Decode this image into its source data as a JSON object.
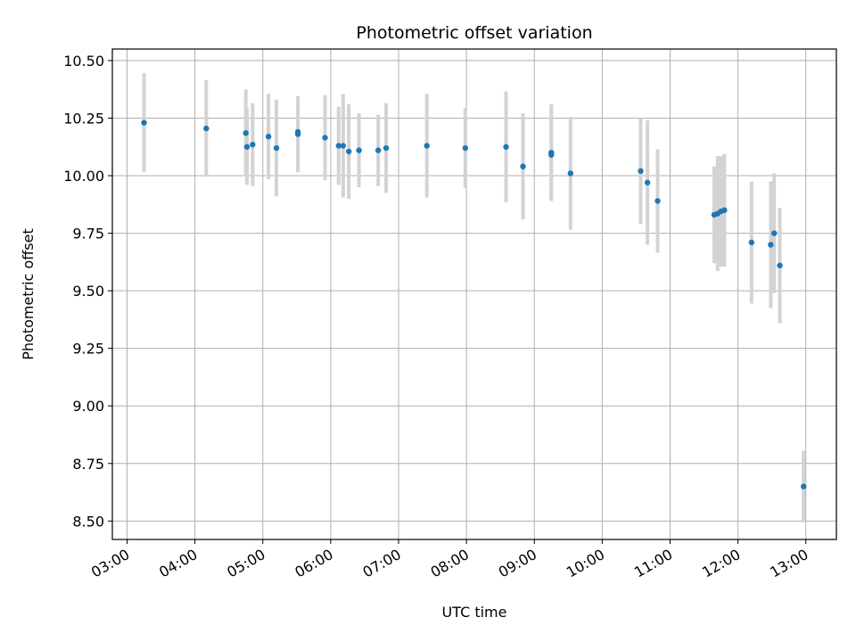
{
  "chart_data": {
    "type": "scatter",
    "title": "Photometric offset variation",
    "xlabel": "UTC time",
    "ylabel": "Photometric offset",
    "grid": true,
    "xlim": [
      "02:47",
      "13:27"
    ],
    "ylim": [
      8.42,
      10.55
    ],
    "x_ticks": [
      "03:00",
      "04:00",
      "05:00",
      "06:00",
      "07:00",
      "08:00",
      "09:00",
      "10:00",
      "11:00",
      "12:00",
      "13:00"
    ],
    "y_ticks": [
      "8.50",
      "8.75",
      "9.00",
      "9.25",
      "9.50",
      "9.75",
      "10.00",
      "10.25",
      "10.50"
    ],
    "point_color": "#1f77b4",
    "errorbar_color": "#d3d3d3",
    "points": [
      {
        "x": "03:15",
        "y": 10.23,
        "err": 0.215
      },
      {
        "x": "04:10",
        "y": 10.205,
        "err": 0.21
      },
      {
        "x": "04:45",
        "y": 10.185,
        "err": 0.19
      },
      {
        "x": "04:46",
        "y": 10.125,
        "err": 0.165
      },
      {
        "x": "04:51",
        "y": 10.135,
        "err": 0.18
      },
      {
        "x": "05:05",
        "y": 10.17,
        "err": 0.185
      },
      {
        "x": "05:12",
        "y": 10.12,
        "err": 0.21
      },
      {
        "x": "05:31",
        "y": 10.18,
        "err": 0.165
      },
      {
        "x": "05:31",
        "y": 10.19,
        "err": 0.15
      },
      {
        "x": "05:55",
        "y": 10.165,
        "err": 0.185
      },
      {
        "x": "06:07",
        "y": 10.13,
        "err": 0.17
      },
      {
        "x": "06:11",
        "y": 10.13,
        "err": 0.225
      },
      {
        "x": "06:16",
        "y": 10.105,
        "err": 0.205
      },
      {
        "x": "06:25",
        "y": 10.11,
        "err": 0.16
      },
      {
        "x": "06:42",
        "y": 10.11,
        "err": 0.155
      },
      {
        "x": "06:49",
        "y": 10.12,
        "err": 0.195
      },
      {
        "x": "07:25",
        "y": 10.13,
        "err": 0.225
      },
      {
        "x": "07:59",
        "y": 10.12,
        "err": 0.175
      },
      {
        "x": "08:35",
        "y": 10.125,
        "err": 0.24
      },
      {
        "x": "08:50",
        "y": 10.04,
        "err": 0.23
      },
      {
        "x": "09:15",
        "y": 10.1,
        "err": 0.21
      },
      {
        "x": "09:15",
        "y": 10.09,
        "err": 0.195
      },
      {
        "x": "09:32",
        "y": 10.01,
        "err": 0.245
      },
      {
        "x": "10:34",
        "y": 10.02,
        "err": 0.23
      },
      {
        "x": "10:40",
        "y": 9.97,
        "err": 0.27
      },
      {
        "x": "10:49",
        "y": 9.89,
        "err": 0.225
      },
      {
        "x": "11:39",
        "y": 9.83,
        "err": 0.21
      },
      {
        "x": "11:42",
        "y": 9.835,
        "err": 0.25
      },
      {
        "x": "11:45",
        "y": 9.845,
        "err": 0.24
      },
      {
        "x": "11:48",
        "y": 9.85,
        "err": 0.245
      },
      {
        "x": "12:12",
        "y": 9.71,
        "err": 0.265
      },
      {
        "x": "12:29",
        "y": 9.7,
        "err": 0.275
      },
      {
        "x": "12:32",
        "y": 9.75,
        "err": 0.26
      },
      {
        "x": "12:37",
        "y": 9.61,
        "err": 0.25
      },
      {
        "x": "12:58",
        "y": 8.65,
        "err": 0.155
      }
    ]
  }
}
